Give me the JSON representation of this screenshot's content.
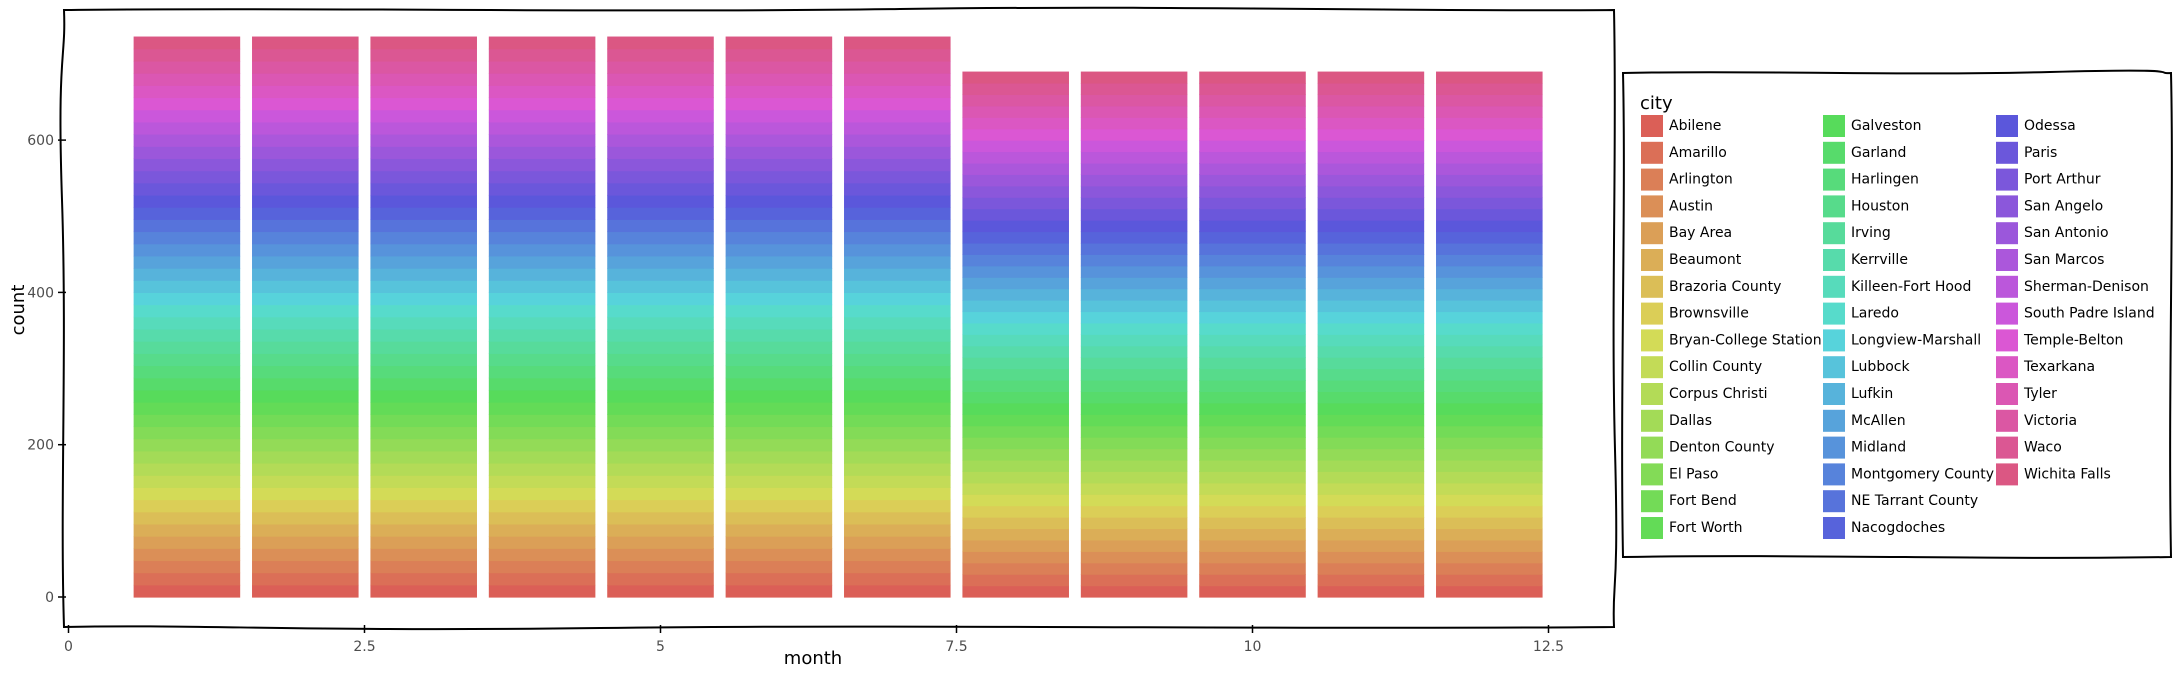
{
  "chart_data": {
    "type": "bar",
    "stacked": true,
    "xlabel": "month",
    "ylabel": "count",
    "xlim": [
      0,
      13.1
    ],
    "ylim": [
      -16,
      775
    ],
    "xticks": [
      0,
      2.5,
      5,
      7.5,
      10,
      12.5
    ],
    "xtick_labels": [
      "0",
      "2.5",
      "5",
      "7.5",
      "10",
      "12.5"
    ],
    "yticks": [
      0,
      200,
      400,
      600
    ],
    "ytick_labels": [
      "0",
      "200",
      "400",
      "600"
    ],
    "categories": [
      1,
      2,
      3,
      4,
      5,
      6,
      7,
      8,
      9,
      10,
      11,
      12
    ],
    "totals": [
      736,
      736,
      736,
      736,
      736,
      736,
      736,
      690,
      690,
      690,
      690,
      690
    ],
    "series": [
      {
        "name": "Abilene",
        "values": [
          16,
          16,
          16,
          16,
          16,
          16,
          16,
          15,
          15,
          15,
          15,
          15
        ]
      },
      {
        "name": "Amarillo",
        "values": [
          16,
          16,
          16,
          16,
          16,
          16,
          16,
          15,
          15,
          15,
          15,
          15
        ]
      },
      {
        "name": "Arlington",
        "values": [
          16,
          16,
          16,
          16,
          16,
          16,
          16,
          15,
          15,
          15,
          15,
          15
        ]
      },
      {
        "name": "Austin",
        "values": [
          16,
          16,
          16,
          16,
          16,
          16,
          16,
          15,
          15,
          15,
          15,
          15
        ]
      },
      {
        "name": "Bay Area",
        "values": [
          16,
          16,
          16,
          16,
          16,
          16,
          16,
          15,
          15,
          15,
          15,
          15
        ]
      },
      {
        "name": "Beaumont",
        "values": [
          16,
          16,
          16,
          16,
          16,
          16,
          16,
          15,
          15,
          15,
          15,
          15
        ]
      },
      {
        "name": "Brazoria County",
        "values": [
          16,
          16,
          16,
          16,
          16,
          16,
          16,
          15,
          15,
          15,
          15,
          15
        ]
      },
      {
        "name": "Brownsville",
        "values": [
          16,
          16,
          16,
          16,
          16,
          16,
          16,
          15,
          15,
          15,
          15,
          15
        ]
      },
      {
        "name": "Bryan-College Station",
        "values": [
          16,
          16,
          16,
          16,
          16,
          16,
          16,
          15,
          15,
          15,
          15,
          15
        ]
      },
      {
        "name": "Collin County",
        "values": [
          16,
          16,
          16,
          16,
          16,
          16,
          16,
          15,
          15,
          15,
          15,
          15
        ]
      },
      {
        "name": "Corpus Christi",
        "values": [
          16,
          16,
          16,
          16,
          16,
          16,
          16,
          15,
          15,
          15,
          15,
          15
        ]
      },
      {
        "name": "Dallas",
        "values": [
          16,
          16,
          16,
          16,
          16,
          16,
          16,
          15,
          15,
          15,
          15,
          15
        ]
      },
      {
        "name": "Denton County",
        "values": [
          16,
          16,
          16,
          16,
          16,
          16,
          16,
          15,
          15,
          15,
          15,
          15
        ]
      },
      {
        "name": "El Paso",
        "values": [
          16,
          16,
          16,
          16,
          16,
          16,
          16,
          15,
          15,
          15,
          15,
          15
        ]
      },
      {
        "name": "Fort Bend",
        "values": [
          16,
          16,
          16,
          16,
          16,
          16,
          16,
          15,
          15,
          15,
          15,
          15
        ]
      },
      {
        "name": "Fort Worth",
        "values": [
          16,
          16,
          16,
          16,
          16,
          16,
          16,
          15,
          15,
          15,
          15,
          15
        ]
      },
      {
        "name": "Galveston",
        "values": [
          16,
          16,
          16,
          16,
          16,
          16,
          16,
          15,
          15,
          15,
          15,
          15
        ]
      },
      {
        "name": "Garland",
        "values": [
          16,
          16,
          16,
          16,
          16,
          16,
          16,
          15,
          15,
          15,
          15,
          15
        ]
      },
      {
        "name": "Harlingen",
        "values": [
          16,
          16,
          16,
          16,
          16,
          16,
          16,
          15,
          15,
          15,
          15,
          15
        ]
      },
      {
        "name": "Houston",
        "values": [
          16,
          16,
          16,
          16,
          16,
          16,
          16,
          15,
          15,
          15,
          15,
          15
        ]
      },
      {
        "name": "Irving",
        "values": [
          16,
          16,
          16,
          16,
          16,
          16,
          16,
          15,
          15,
          15,
          15,
          15
        ]
      },
      {
        "name": "Kerrville",
        "values": [
          16,
          16,
          16,
          16,
          16,
          16,
          16,
          15,
          15,
          15,
          15,
          15
        ]
      },
      {
        "name": "Killeen-Fort Hood",
        "values": [
          16,
          16,
          16,
          16,
          16,
          16,
          16,
          15,
          15,
          15,
          15,
          15
        ]
      },
      {
        "name": "Laredo",
        "values": [
          16,
          16,
          16,
          16,
          16,
          16,
          16,
          15,
          15,
          15,
          15,
          15
        ]
      },
      {
        "name": "Longview-Marshall",
        "values": [
          16,
          16,
          16,
          16,
          16,
          16,
          16,
          15,
          15,
          15,
          15,
          15
        ]
      },
      {
        "name": "Lubbock",
        "values": [
          16,
          16,
          16,
          16,
          16,
          16,
          16,
          15,
          15,
          15,
          15,
          15
        ]
      },
      {
        "name": "Lufkin",
        "values": [
          16,
          16,
          16,
          16,
          16,
          16,
          16,
          15,
          15,
          15,
          15,
          15
        ]
      },
      {
        "name": "McAllen",
        "values": [
          16,
          16,
          16,
          16,
          16,
          16,
          16,
          15,
          15,
          15,
          15,
          15
        ]
      },
      {
        "name": "Midland",
        "values": [
          16,
          16,
          16,
          16,
          16,
          16,
          16,
          15,
          15,
          15,
          15,
          15
        ]
      },
      {
        "name": "Montgomery County",
        "values": [
          16,
          16,
          16,
          16,
          16,
          16,
          16,
          15,
          15,
          15,
          15,
          15
        ]
      },
      {
        "name": "NE Tarrant County",
        "values": [
          16,
          16,
          16,
          16,
          16,
          16,
          16,
          15,
          15,
          15,
          15,
          15
        ]
      },
      {
        "name": "Nacogdoches",
        "values": [
          16,
          16,
          16,
          16,
          16,
          16,
          16,
          15,
          15,
          15,
          15,
          15
        ]
      },
      {
        "name": "Odessa",
        "values": [
          16,
          16,
          16,
          16,
          16,
          16,
          16,
          15,
          15,
          15,
          15,
          15
        ]
      },
      {
        "name": "Paris",
        "values": [
          16,
          16,
          16,
          16,
          16,
          16,
          16,
          15,
          15,
          15,
          15,
          15
        ]
      },
      {
        "name": "Port Arthur",
        "values": [
          16,
          16,
          16,
          16,
          16,
          16,
          16,
          15,
          15,
          15,
          15,
          15
        ]
      },
      {
        "name": "San Angelo",
        "values": [
          16,
          16,
          16,
          16,
          16,
          16,
          16,
          15,
          15,
          15,
          15,
          15
        ]
      },
      {
        "name": "San Antonio",
        "values": [
          16,
          16,
          16,
          16,
          16,
          16,
          16,
          15,
          15,
          15,
          15,
          15
        ]
      },
      {
        "name": "San Marcos",
        "values": [
          16,
          16,
          16,
          16,
          16,
          16,
          16,
          15,
          15,
          15,
          15,
          15
        ]
      },
      {
        "name": "Sherman-Denison",
        "values": [
          16,
          16,
          16,
          16,
          16,
          16,
          16,
          15,
          15,
          15,
          15,
          15
        ]
      },
      {
        "name": "South Padre Island",
        "values": [
          16,
          16,
          16,
          16,
          16,
          16,
          16,
          15,
          15,
          15,
          15,
          15
        ]
      },
      {
        "name": "Temple-Belton",
        "values": [
          16,
          16,
          16,
          16,
          16,
          16,
          16,
          15,
          15,
          15,
          15,
          15
        ]
      },
      {
        "name": "Texarkana",
        "values": [
          16,
          16,
          16,
          16,
          16,
          16,
          16,
          15,
          15,
          15,
          15,
          15
        ]
      },
      {
        "name": "Tyler",
        "values": [
          16,
          16,
          16,
          16,
          16,
          16,
          16,
          15,
          15,
          15,
          15,
          15
        ]
      },
      {
        "name": "Victoria",
        "values": [
          16,
          16,
          16,
          16,
          16,
          16,
          16,
          15,
          15,
          15,
          15,
          15
        ]
      },
      {
        "name": "Waco",
        "values": [
          16,
          16,
          16,
          16,
          16,
          16,
          16,
          15,
          15,
          15,
          15,
          15
        ]
      },
      {
        "name": "Wichita Falls",
        "values": [
          16,
          16,
          16,
          16,
          16,
          16,
          16,
          15,
          15,
          15,
          15,
          15
        ]
      }
    ],
    "legend_title": "city",
    "legend_placement": "right",
    "grid": false,
    "style": "hand-drawn (xkcd)",
    "colors": [
      "#db5f57",
      "#db6f57",
      "#db7f57",
      "#db8f57",
      "#db9f57",
      "#dbae57",
      "#dbbe57",
      "#dbce57",
      "#d3db57",
      "#c3db57",
      "#b3db57",
      "#a3db57",
      "#93db57",
      "#83db57",
      "#73db57",
      "#63db57",
      "#57db5b",
      "#57db6b",
      "#57db7b",
      "#57db8b",
      "#57db9b",
      "#57dbab",
      "#57dbbb",
      "#57dbcb",
      "#57d3db",
      "#57c3db",
      "#57b3db",
      "#57a3db",
      "#5793db",
      "#5783db",
      "#5773db",
      "#5763db",
      "#5b57db",
      "#6b57db",
      "#7b57db",
      "#8b57db",
      "#9b57db",
      "#ab57db",
      "#bb57db",
      "#cb57db",
      "#db57d3",
      "#db57c3",
      "#db57b3",
      "#db57a3",
      "#db5793",
      "#db5783"
    ]
  }
}
